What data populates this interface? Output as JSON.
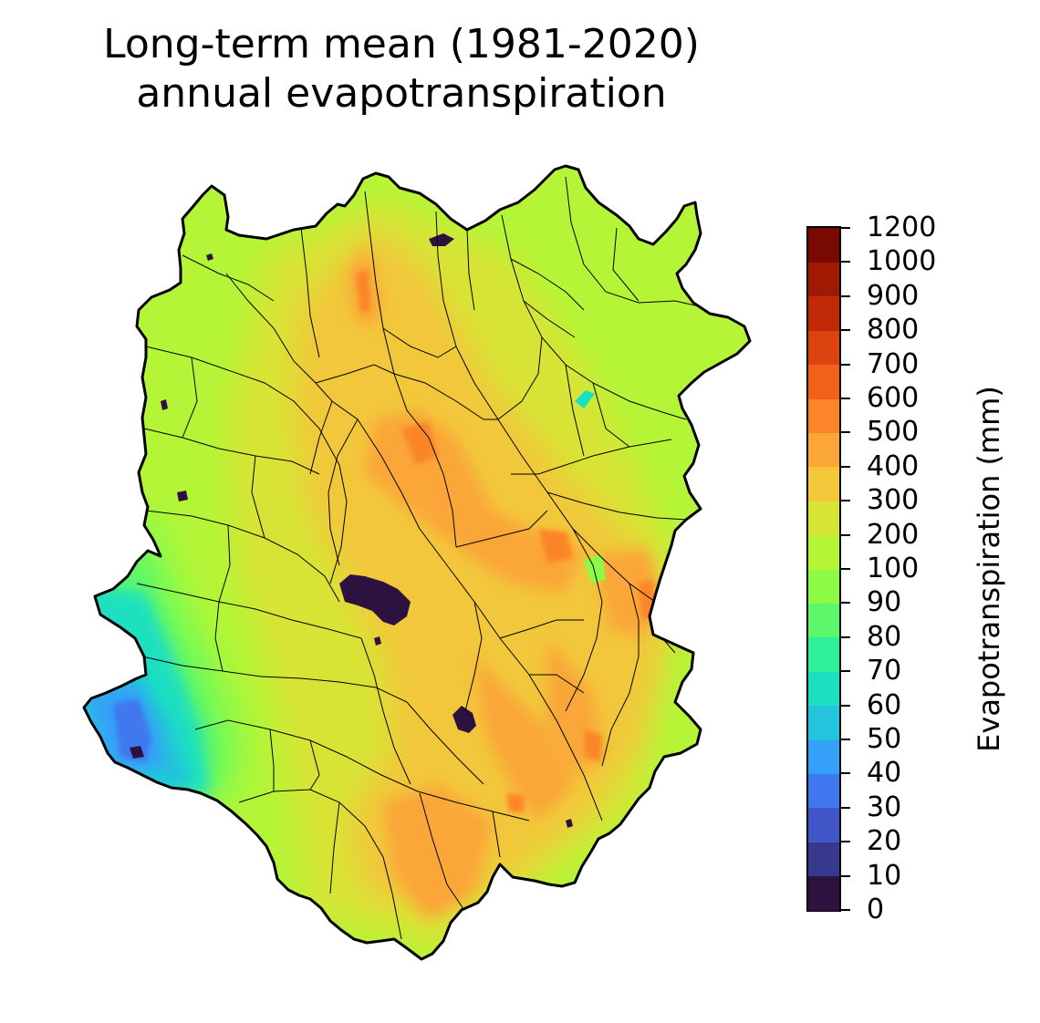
{
  "title_line1": "Long-term mean (1981-2020)",
  "title_line2": "annual evapotranspiration",
  "colorbar": {
    "label": "Evapotranspiration (mm)",
    "ticks": [
      "0",
      "10",
      "20",
      "30",
      "40",
      "50",
      "60",
      "70",
      "80",
      "90",
      "100",
      "200",
      "300",
      "400",
      "500",
      "600",
      "700",
      "800",
      "900",
      "1000",
      "1200"
    ],
    "colors": [
      "#2d1240",
      "#37398f",
      "#4255c8",
      "#3f78ee",
      "#35a0f8",
      "#24c4dc",
      "#1ae0c0",
      "#2ef09a",
      "#5cf76a",
      "#8dfb45",
      "#b5f538",
      "#d8e435",
      "#f2c73a",
      "#fba638",
      "#fb8528",
      "#f0621a",
      "#dd430f",
      "#c12a07",
      "#a01903",
      "#780a02"
    ]
  },
  "map": {
    "region": "basin with sub-catchment boundaries",
    "value_pattern": {
      "south_west_lowland": "40-70",
      "west_and_north": "100-200",
      "central_and_east_ridges": "400-600",
      "urban_patches": "0-10"
    }
  }
}
